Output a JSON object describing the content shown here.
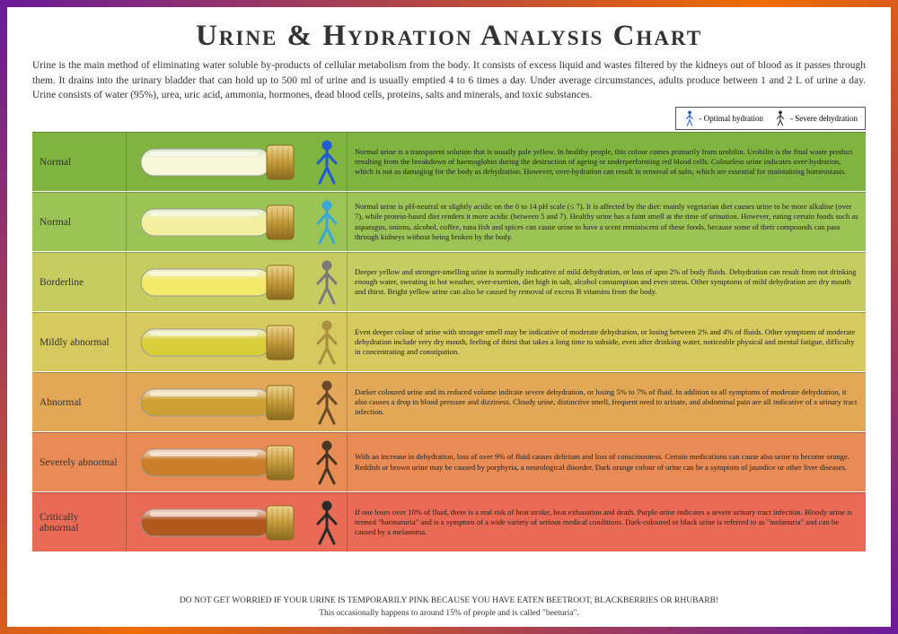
{
  "title": "Urine & Hydration Analysis Chart",
  "intro": "Urine is the main method of eliminating water soluble by-products of cellular metabolism from the body. It consists of excess liquid and wastes filtered by the kidneys out of blood as it passes through them. It drains into the urinary bladder that can hold up to 500 ml of urine and is usually emptied 4 to 6 times a day. Under average circumstances, adults produce between 1 and 2 L of urine a day. Urine consists of water (95%), urea, uric acid, ammonia, hormones, dead blood cells, proteins, salts and minerals, and toxic substances.",
  "legend": {
    "optimal": "- Optimal hydration",
    "severe": "- Severe dehydration",
    "optimal_color": "#1e5bd6",
    "severe_color": "#2b2b2b"
  },
  "rows": [
    {
      "label": "Normal",
      "row_bg": "#7fb441",
      "urine_color": "#f8f6d8",
      "stick_color": "#1e5bd6",
      "desc": "Normal urine is a transparent solution that is usually pale yellow. In healthy people, this colour comes primarily from urobilin. Urobilin is the final waste product resulting from the breakdown of haemoglobin during the destruction of ageing or underperforming red blood cells. Colourless urine indicates over-hydration, which is not as damaging for the body as dehydration. However, over-hydration can result in removal of salts, which are essential for maintaining homeostasis."
    },
    {
      "label": "Normal",
      "row_bg": "#9cc355",
      "urine_color": "#f4ef9e",
      "stick_color": "#3aa7d8",
      "desc": "Normal urine is pH-neutral or slightly acidic on the 0 to 14 pH scale (≤ 7). It is affected by the diet: mainly vegetarian diet causes urine to be more alkaline (over 7), while protein-based diet renders it more acidic (between 5 and 7). Healthy urine has a faint smell at the time of urination. However, eating certain foods such as asparagus, onions, alcohol, coffee, tuna fish and spices can cause urine to have a scent reminiscent of these foods, because some of their compounds can pass through kidneys without being broken by the body."
    },
    {
      "label": "Borderline",
      "row_bg": "#c6cc5f",
      "urine_color": "#f2e86a",
      "stick_color": "#7a7a7a",
      "desc": "Deeper yellow and stronger-smelling urine is normally indicative of mild dehydration, or loss of upto 2% of body fluids. Dehydration can result from not drinking enough water, sweating in hot weather, over-exertion, diet high in salt, alcohol consumption and even stress. Other symptoms of mild dehydration are dry mouth and thirst. Bright yellow urine can also be caused by removal of excess B vitamins from the body."
    },
    {
      "label": "Mildly abnormal",
      "row_bg": "#d6c95e",
      "urine_color": "#d8ce3a",
      "stick_color": "#a7903f",
      "desc": "Even deeper colour of urine with stronger smell may be indicative of moderate dehydration, or losing between 2% and 4% of fluids. Other symptoms of moderate dehydration include very dry mouth, feeling of thirst that takes a long time to subside, even after drinking water, noticeable physical and mental fatigue, difficulty in concentrating and constipation."
    },
    {
      "label": "Abnormal",
      "row_bg": "#e3a857",
      "urine_color": "#cda034",
      "stick_color": "#6a4a2a",
      "desc": "Darker coloured urine and its reduced volume indicate severe dehydration, or losing 5% to 7% of fluid. In addition to all symptoms of moderate dehydration, it also causes a drop in blood pressure and dizziness. Cloudy urine, distinctive smell, frequent need to urinate, and abdominal pain are all indicative of a urinary tract infection."
    },
    {
      "label": "Severely abnormal",
      "row_bg": "#e88b55",
      "urine_color": "#c97e2a",
      "stick_color": "#4a3525",
      "desc": "With an increase in dehydration, loss of over 9% of fluid causes delirium and loss of consciousness. Certain medications can cause also urine to become orange. Reddish or brown urine may be caused by porphyria, a neurological disorder. Dark orange colour of urine can be a symptom of jaundice or other liver diseases."
    },
    {
      "label": "Critically abnormal",
      "row_bg": "#e96b55",
      "urine_color": "#b15a1e",
      "stick_color": "#2b2b2b",
      "desc": "If one loses over 10% of fluid, there is a real risk of heat stroke, heat exhaustion and death. Purple urine indicates a severe urinary tract infection. Bloody urine is termed \"haematuria\" and is a symptom of a wide variety of serious medical conditions. Dark-coloured or black urine is referred to as \"melanuria\" and can be caused by a melanoma."
    }
  ],
  "footer_line1": "DO NOT GET WORRIED IF YOUR URINE IS TEMPORARILY PINK BECAUSE YOU HAVE EATEN BEETROOT, BLACKBERRIES OR RHUBARB!",
  "footer_line2": "This occasionally happens to around 15% of people and is called \"beeturia\".",
  "tube": {
    "cap_color": "#c49a3a",
    "cap_stroke": "#8a6a20",
    "glass_stroke": "#999999"
  }
}
